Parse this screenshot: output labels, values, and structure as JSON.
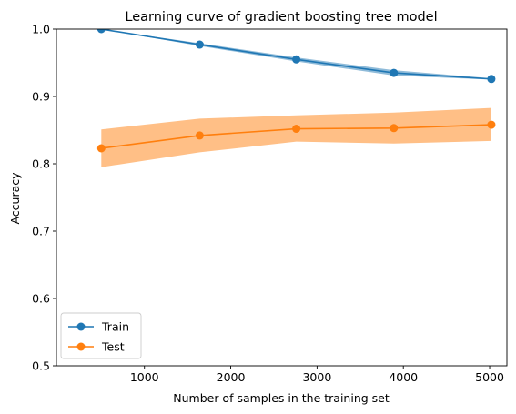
{
  "chart_data": {
    "type": "line",
    "title": "Learning curve of gradient boosting tree model",
    "xlabel": "Number of samples in the training set",
    "ylabel": "Accuracy",
    "xlim": [
      -20,
      5200
    ],
    "ylim": [
      0.5,
      1.0
    ],
    "x_ticks": [
      1000,
      2000,
      3000,
      4000,
      5000
    ],
    "x_tick_labels": [
      "1000",
      "2000",
      "3000",
      "4000",
      "5000"
    ],
    "y_ticks": [
      0.5,
      0.6,
      0.7,
      0.8,
      0.9,
      1.0
    ],
    "y_tick_labels": [
      "0.5",
      "0.6",
      "0.7",
      "0.8",
      "0.9",
      "1.0"
    ],
    "grid": false,
    "legend": {
      "placement": "lower-left"
    },
    "x": [
      500,
      1640,
      2760,
      3890,
      5020
    ],
    "series": [
      {
        "name": "Train",
        "color": "#1f77b4",
        "values": [
          1.0,
          0.977,
          0.955,
          0.935,
          0.926
        ],
        "lower": [
          1.0,
          0.975,
          0.952,
          0.931,
          0.925
        ],
        "upper": [
          1.0,
          0.979,
          0.958,
          0.939,
          0.927
        ]
      },
      {
        "name": "Test",
        "color": "#ff7f0e",
        "values": [
          0.823,
          0.842,
          0.852,
          0.853,
          0.858
        ],
        "lower": [
          0.795,
          0.817,
          0.833,
          0.83,
          0.834
        ],
        "upper": [
          0.851,
          0.867,
          0.872,
          0.876,
          0.883
        ]
      }
    ]
  }
}
